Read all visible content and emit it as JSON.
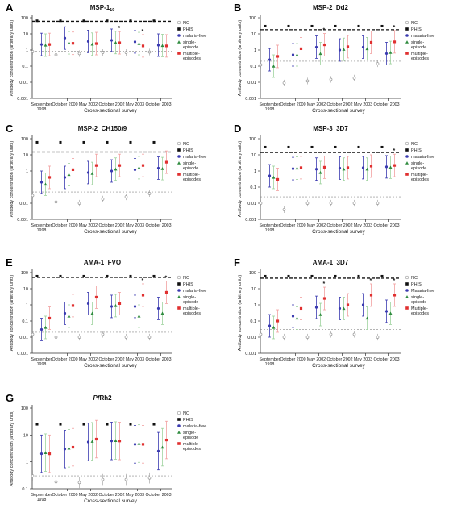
{
  "panels_common": {
    "ylabel": "Antibody concentration (arbitrary units)",
    "xlabel": "Cross-sectional survey",
    "colors": {
      "NC": "#999999",
      "PHIS": "#111111",
      "malaria_free": "#3a3ab0",
      "single": "#2e8b3e",
      "multiple": "#e03030",
      "pale_single": "#9fd39f",
      "pale_multiple": "#f2a0a0"
    }
  },
  "chart_data": [
    {
      "panel": "A",
      "type": "scatter",
      "title": "MSP-1",
      "title_sub": "19",
      "legend": [
        "NC",
        "PHIS",
        "malaria-free",
        "single-episode",
        "multiple-episodes"
      ],
      "legend_lines": [
        [
          "NC"
        ],
        [
          "PHIS"
        ],
        [
          "malaria-free"
        ],
        [
          "single-",
          "episode"
        ],
        [
          "multiple-",
          "episodes"
        ]
      ],
      "categories": [
        [
          "September",
          "1998"
        ],
        [
          "October 2000"
        ],
        [
          "May 2002"
        ],
        [
          "October 2002"
        ],
        [
          "May 2003"
        ],
        [
          "October 2003"
        ]
      ],
      "yticks": [
        0.001,
        0.01,
        0.1,
        1,
        10,
        100
      ],
      "ytick_labels": [
        "0.001",
        "0.01",
        "0.1",
        "1",
        "10",
        "100"
      ],
      "ylim": [
        0.001,
        100
      ],
      "phis_line": 60,
      "nc_line": 0.85,
      "nc": [
        0.8,
        0.5,
        0.6,
        0.7,
        0.7,
        0.75
      ],
      "phis_markers": [
        65,
        65,
        65,
        65,
        65,
        65
      ],
      "malaria_free": [
        2.2,
        5.5,
        3.4,
        4.0,
        3.2,
        2.0
      ],
      "single_episode": [
        2.0,
        2.8,
        2.3,
        2.9,
        2.5,
        1.9
      ],
      "multiple_episodes": [
        2.2,
        2.6,
        2.5,
        2.8,
        1.8,
        1.8
      ],
      "star": [
        0,
        0,
        0,
        1,
        1,
        0
      ]
    },
    {
      "panel": "B",
      "type": "scatter",
      "title": "MSP-2_Dd2",
      "title_sub": "",
      "legend": [
        "NC",
        "PHIS",
        "malaria-free",
        "single-episode",
        "multiple-episodes"
      ],
      "legend_lines": [
        [
          "NC"
        ],
        [
          "PHIS"
        ],
        [
          "malaria-free"
        ],
        [
          "single-",
          "episode"
        ],
        [
          "multiple-",
          "episodes"
        ]
      ],
      "categories": [
        [
          "September",
          "1998"
        ],
        [
          "October 2000"
        ],
        [
          "May 2002"
        ],
        [
          "October 2002"
        ],
        [
          "May 2003"
        ],
        [
          "October 2003"
        ]
      ],
      "yticks": [
        0.001,
        0.01,
        0.1,
        1,
        10,
        100
      ],
      "ytick_labels": [
        "0.001",
        "0.01",
        "0.1",
        "1",
        "10",
        "100"
      ],
      "ylim": [
        0.001,
        100
      ],
      "phis_line": 18,
      "nc_line": 0.2,
      "nc": [
        0.12,
        0.009,
        0.012,
        0.015,
        0.018,
        0.14
      ],
      "phis_markers": [
        30,
        30,
        30,
        30,
        30,
        30
      ],
      "malaria_free": [
        0.25,
        0.5,
        1.5,
        1.0,
        1.5,
        0.6
      ],
      "single_episode": [
        0.1,
        0.5,
        0.6,
        1.1,
        1.2,
        0.7
      ],
      "multiple_episodes": [
        0.4,
        1.2,
        2.1,
        1.6,
        3.0,
        3.2
      ],
      "star": [
        0,
        0,
        1,
        0,
        0,
        1
      ]
    },
    {
      "panel": "C",
      "type": "scatter",
      "title": "MSP-2_CH150/9",
      "title_sub": "",
      "legend": [
        "NC",
        "PHIS",
        "malaria-free",
        "single-episode",
        "multiple-episodes"
      ],
      "legend_lines": [
        [
          "NC"
        ],
        [
          "PHIS"
        ],
        [
          "malaria-free"
        ],
        [
          "single-",
          "episode"
        ],
        [
          "multiple-",
          "episodes"
        ]
      ],
      "categories": [
        [
          "September",
          "1998"
        ],
        [
          "October 2000"
        ],
        [
          "May 2002"
        ],
        [
          "October 2002"
        ],
        [
          "May 2003"
        ],
        [
          "October 2003"
        ]
      ],
      "yticks": [
        0.001,
        0.01,
        1,
        10,
        100
      ],
      "ytick_labels": [
        "0.001",
        "0.01",
        "1",
        "10",
        "100"
      ],
      "ylim": [
        0.001,
        100
      ],
      "phis_line": 15,
      "nc_line": 0.05,
      "nc": [
        0.03,
        0.012,
        0.01,
        0.018,
        0.025,
        0.04
      ],
      "phis_markers": [
        60,
        60,
        60,
        60,
        60,
        60
      ],
      "malaria_free": [
        0.2,
        0.4,
        0.8,
        1.0,
        1.2,
        1.5
      ],
      "single_episode": [
        0.15,
        0.6,
        0.7,
        1.3,
        1.6,
        1.4
      ],
      "multiple_episodes": [
        0.4,
        1.2,
        2.2,
        2.2,
        2.2,
        3.5
      ],
      "star": [
        0,
        0,
        0,
        0,
        0,
        0
      ]
    },
    {
      "panel": "D",
      "type": "scatter",
      "title": "MSP-3_3D7",
      "title_sub": "",
      "legend": [
        "NC",
        "PHIS",
        "malaria-free",
        "single-episode",
        "multiple-episodes"
      ],
      "legend_lines": [
        [
          "NC"
        ],
        [
          "PHIS"
        ],
        [
          "malaria-free"
        ],
        [
          "single-",
          "episode"
        ],
        [
          "multiple-",
          "episodes"
        ]
      ],
      "categories": [
        [
          "September",
          "1998"
        ],
        [
          "October 2000"
        ],
        [
          "May 2002"
        ],
        [
          "October 2002"
        ],
        [
          "May 2003"
        ],
        [
          "October 2003"
        ]
      ],
      "yticks": [
        0.001,
        0.01,
        0.1,
        1,
        10,
        100
      ],
      "ytick_labels": [
        "0.001",
        "0.01",
        "0.1",
        "1",
        "10",
        "100"
      ],
      "ylim": [
        0.001,
        100
      ],
      "phis_line": 14,
      "nc_line": 0.025,
      "nc": [
        0.01,
        0.004,
        0.01,
        0.01,
        0.01,
        0.01
      ],
      "phis_markers": [
        30,
        30,
        30,
        30,
        30,
        30
      ],
      "malaria_free": [
        0.5,
        1.4,
        1.3,
        1.5,
        1.6,
        1.8
      ],
      "single_episode": [
        0.4,
        1.5,
        0.8,
        1.3,
        1.3,
        1.7
      ],
      "multiple_episodes": [
        0.3,
        1.6,
        1.7,
        1.6,
        2.0,
        2.2
      ],
      "star": [
        0,
        0,
        0,
        0,
        0,
        1
      ]
    },
    {
      "panel": "E",
      "type": "scatter",
      "title": "AMA-1_FVO",
      "title_sub": "",
      "legend": [
        "NC",
        "PHIS",
        "malaria-free",
        "single-episode",
        "multiple-episodes"
      ],
      "legend_lines": [
        [
          "NC"
        ],
        [
          "PHIS"
        ],
        [
          "malaria-free"
        ],
        [
          "single-",
          "episode"
        ],
        [
          "multiple-",
          "episodes"
        ]
      ],
      "categories": [
        [
          "September",
          "1998"
        ],
        [
          "October 2000"
        ],
        [
          "May 2002"
        ],
        [
          "October 2002"
        ],
        [
          "May 2003"
        ],
        [
          "October 2003"
        ]
      ],
      "yticks": [
        0.001,
        0.01,
        0.1,
        1,
        10,
        100
      ],
      "ytick_labels": [
        "0.001",
        "0.01",
        "0.1",
        "1",
        "10",
        "100"
      ],
      "ylim": [
        0.001,
        100
      ],
      "phis_line": 50,
      "nc_line": 0.02,
      "nc": [
        0.015,
        0.01,
        0.01,
        0.015,
        0.01,
        0.01
      ],
      "phis_markers": [
        60,
        60,
        60,
        60,
        60,
        60
      ],
      "malaria_free": [
        0.03,
        0.3,
        1.2,
        0.8,
        0.8,
        0.6
      ],
      "single_episode": [
        0.04,
        0.2,
        0.3,
        0.9,
        0.2,
        0.3
      ],
      "multiple_episodes": [
        0.15,
        0.9,
        3.0,
        1.2,
        4.0,
        6.0
      ],
      "star": [
        0,
        0,
        0,
        0,
        1,
        1
      ]
    },
    {
      "panel": "F",
      "type": "scatter",
      "title": "AMA-1_3D7",
      "title_sub": "",
      "legend": [
        "NC",
        "PHIS",
        "Malaria-free",
        "single-episode",
        "Multiple-episodes"
      ],
      "legend_lines": [
        [
          "NC"
        ],
        [
          "PHIS"
        ],
        [
          "Malaria-free"
        ],
        [
          "single-",
          "episode"
        ],
        [
          "Multiple-",
          "episodes"
        ]
      ],
      "categories": [
        [
          "September",
          "1998"
        ],
        [
          "October 2000"
        ],
        [
          "May 2002"
        ],
        [
          "October 2002"
        ],
        [
          "May 2003"
        ],
        [
          "October 2003"
        ]
      ],
      "yticks": [
        0.001,
        0.01,
        0.1,
        1,
        10,
        100
      ],
      "ytick_labels": [
        "0.001",
        "0.01",
        "0.1",
        "1",
        "10",
        "100"
      ],
      "ylim": [
        0.001,
        100
      ],
      "phis_line": 45,
      "nc_line": 0.03,
      "nc": [
        0.015,
        0.01,
        0.01,
        0.015,
        0.015,
        0.01
      ],
      "phis_markers": [
        60,
        60,
        60,
        60,
        60,
        60
      ],
      "malaria_free": [
        0.05,
        0.2,
        0.7,
        0.6,
        1.0,
        0.4
      ],
      "single_episode": [
        0.04,
        0.15,
        0.25,
        0.6,
        0.15,
        0.3
      ],
      "multiple_episodes": [
        0.1,
        0.6,
        2.5,
        1.0,
        4.0,
        4.0
      ],
      "star": [
        0,
        0,
        1,
        0,
        1,
        1
      ]
    },
    {
      "panel": "G",
      "type": "scatter",
      "title": "PfRh2",
      "title_italic_prefix": "Pf",
      "title_rest": "Rh2",
      "title_sub": "",
      "legend": [
        "NC",
        "PHIS",
        "malaria-free",
        "single-episode",
        "multiple-episodes"
      ],
      "legend_lines": [
        [
          "NC"
        ],
        [
          "PHIS"
        ],
        [
          "malaria-free"
        ],
        [
          "single-",
          "episode"
        ],
        [
          "multiple-",
          "episodes"
        ]
      ],
      "categories": [
        [
          "September",
          "1998"
        ],
        [
          "October 2000"
        ],
        [
          "May 2002"
        ],
        [
          "October 2002"
        ],
        [
          "May 2003"
        ],
        [
          "October 2003"
        ]
      ],
      "yticks": [
        0.1,
        1,
        10,
        100
      ],
      "ytick_labels": [
        "0.1",
        "1",
        "10",
        "100"
      ],
      "ylim": [
        0.1,
        100
      ],
      "phis_line": null,
      "nc_line": 0.3,
      "nc": [
        0.3,
        0.18,
        0.17,
        0.22,
        0.22,
        0.25
      ],
      "phis_markers": [
        25,
        25,
        25,
        25,
        25,
        25
      ],
      "malaria_free": [
        2.0,
        3.0,
        5.5,
        6.0,
        4.5,
        2.5
      ],
      "single_episode": [
        2.2,
        3.2,
        5.8,
        6.2,
        4.8,
        3.5
      ],
      "multiple_episodes": [
        2.0,
        3.5,
        7.0,
        6.0,
        4.5,
        6.5
      ],
      "star": [
        0,
        0,
        0,
        0,
        0,
        0
      ]
    }
  ]
}
